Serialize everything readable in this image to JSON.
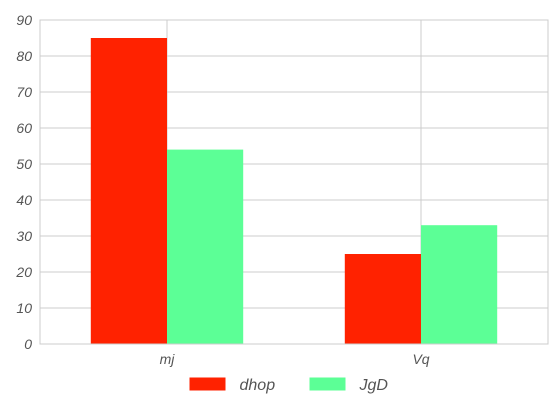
{
  "chart_data": {
    "type": "bar",
    "title": "",
    "xlabel": "",
    "ylabel": "",
    "categories": [
      "mj",
      "Vq"
    ],
    "series": [
      {
        "name": "dhop",
        "values": [
          85,
          25
        ],
        "color": "#ff2200"
      },
      {
        "name": "JgD",
        "values": [
          54,
          33
        ],
        "color": "#5cff96"
      }
    ],
    "ylim": [
      0,
      90
    ],
    "yticks": [
      "0",
      "10",
      "20",
      "30",
      "40",
      "50",
      "60",
      "70",
      "80",
      "90"
    ],
    "grid": true,
    "legend": "bottom-center"
  }
}
